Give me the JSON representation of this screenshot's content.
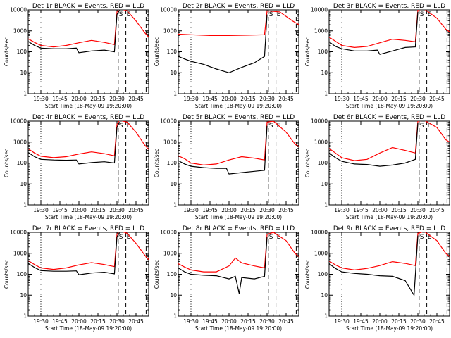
{
  "chart_data": [
    {
      "type": "line",
      "title": "Det 1r BLACK = Events, RED = LLD",
      "xlabel": "Start Time (18-May-09 19:20:00)",
      "ylabel": "Counts/sec",
      "yscale": "log",
      "ylim": [
        1,
        10000
      ],
      "x_ticks": [
        "19:30",
        "19:45",
        "20:00",
        "20:15",
        "20:30",
        "20:45"
      ],
      "y_ticks": [
        "1",
        "10",
        "100",
        "1000",
        "10000"
      ],
      "markers": [
        {
          "type": "dotted",
          "x": "19:30"
        },
        {
          "type": "dashed",
          "x": "20:31",
          "label": "S"
        },
        {
          "type": "dashed",
          "x": "20:53"
        },
        {
          "type": "dashed",
          "x": "20:37",
          "label": "E"
        }
      ],
      "series": [
        {
          "color": "#ff0000",
          "x": [
            "19:20",
            "19:25",
            "19:30",
            "19:40",
            "19:50",
            "20:00",
            "20:10",
            "20:20",
            "20:28",
            "20:30",
            "20:32",
            "20:38",
            "20:45",
            "20:52",
            "20:55"
          ],
          "y": [
            420,
            280,
            200,
            170,
            200,
            270,
            350,
            280,
            220,
            8000,
            12000,
            9000,
            3000,
            800,
            500
          ]
        },
        {
          "color": "#000000",
          "x": [
            "19:20",
            "19:25",
            "19:30",
            "19:40",
            "19:50",
            "19:58",
            "20:00",
            "20:10",
            "20:20",
            "20:28",
            "20:30",
            "20:32"
          ],
          "y": [
            310,
            200,
            150,
            140,
            140,
            150,
            90,
            110,
            120,
            100,
            6000,
            9500
          ]
        }
      ]
    },
    {
      "type": "line",
      "title": "Det 2r BLACK = Events, RED = LLD",
      "xlabel": "Start Time (18-May-09 19:20:00)",
      "ylabel": "Counts/sec",
      "yscale": "log",
      "ylim": [
        1,
        10000
      ],
      "x_ticks": [
        "19:30",
        "19:45",
        "20:00",
        "20:15",
        "20:30",
        "20:45"
      ],
      "y_ticks": [
        "1",
        "10",
        "100",
        "1000",
        "10000"
      ],
      "markers": [
        {
          "type": "dotted",
          "x": "19:30"
        },
        {
          "type": "dashed",
          "x": "20:31",
          "label": "S"
        },
        {
          "type": "dashed",
          "x": "20:53"
        },
        {
          "type": "dashed",
          "x": "20:37",
          "label": "E"
        }
      ],
      "series": [
        {
          "color": "#ff0000",
          "x": [
            "19:20",
            "19:30",
            "19:45",
            "20:00",
            "20:15",
            "20:28",
            "20:30",
            "20:40",
            "20:50",
            "20:55"
          ],
          "y": [
            700,
            650,
            600,
            600,
            620,
            650,
            9000,
            8000,
            3000,
            2000
          ]
        },
        {
          "color": "#000000",
          "x": [
            "19:20",
            "19:25",
            "19:30",
            "19:40",
            "19:50",
            "20:00",
            "20:10",
            "20:20",
            "20:28",
            "20:30"
          ],
          "y": [
            60,
            45,
            35,
            25,
            15,
            10,
            18,
            30,
            60,
            6000
          ]
        }
      ]
    },
    {
      "type": "line",
      "title": "Det 3r BLACK = Events, RED = LLD",
      "xlabel": "Start Time (18-May-09 19:20:00)",
      "ylabel": "Counts/sec",
      "yscale": "log",
      "ylim": [
        1,
        10000
      ],
      "x_ticks": [
        "19:30",
        "19:45",
        "20:00",
        "20:15",
        "20:30",
        "20:45"
      ],
      "y_ticks": [
        "1",
        "10",
        "100",
        "1000",
        "10000"
      ],
      "markers": [
        {
          "type": "dotted",
          "x": "19:30"
        },
        {
          "type": "dashed",
          "x": "20:31",
          "label": "S"
        },
        {
          "type": "dashed",
          "x": "20:53"
        },
        {
          "type": "dashed",
          "x": "20:37",
          "label": "E"
        }
      ],
      "series": [
        {
          "color": "#ff0000",
          "x": [
            "19:20",
            "19:25",
            "19:30",
            "19:40",
            "19:50",
            "20:00",
            "20:10",
            "20:20",
            "20:28",
            "20:30",
            "20:35",
            "20:45",
            "20:52",
            "20:55"
          ],
          "y": [
            500,
            320,
            200,
            160,
            180,
            270,
            400,
            350,
            300,
            10000,
            11000,
            4000,
            1200,
            900
          ]
        },
        {
          "color": "#000000",
          "x": [
            "19:20",
            "19:25",
            "19:30",
            "19:40",
            "19:50",
            "19:58",
            "20:00",
            "20:10",
            "20:20",
            "20:28",
            "20:30"
          ],
          "y": [
            300,
            180,
            140,
            110,
            110,
            120,
            75,
            110,
            160,
            170,
            8000
          ]
        }
      ]
    },
    {
      "type": "line",
      "title": "Det 4r BLACK = Events, RED = LLD",
      "xlabel": "Start Time (18-May-09 19:20:00)",
      "ylabel": "Counts/sec",
      "yscale": "log",
      "ylim": [
        1,
        10000
      ],
      "x_ticks": [
        "19:30",
        "19:45",
        "20:00",
        "20:15",
        "20:30",
        "20:45"
      ],
      "y_ticks": [
        "1",
        "10",
        "100",
        "1000",
        "10000"
      ],
      "markers": [
        {
          "type": "dotted",
          "x": "19:30"
        },
        {
          "type": "dashed",
          "x": "20:31",
          "label": "S"
        },
        {
          "type": "dashed",
          "x": "20:53"
        },
        {
          "type": "dashed",
          "x": "20:37",
          "label": "E"
        }
      ],
      "series": [
        {
          "color": "#ff0000",
          "x": [
            "19:20",
            "19:25",
            "19:30",
            "19:40",
            "19:50",
            "20:00",
            "20:10",
            "20:20",
            "20:28",
            "20:30",
            "20:32",
            "20:38",
            "20:45",
            "20:52",
            "20:55"
          ],
          "y": [
            480,
            300,
            210,
            180,
            200,
            270,
            340,
            280,
            220,
            7000,
            11000,
            9000,
            3000,
            700,
            450
          ]
        },
        {
          "color": "#000000",
          "x": [
            "19:20",
            "19:25",
            "19:30",
            "19:40",
            "19:50",
            "19:58",
            "20:00",
            "20:10",
            "20:20",
            "20:28",
            "20:30",
            "20:32"
          ],
          "y": [
            320,
            200,
            150,
            140,
            135,
            140,
            90,
            105,
            115,
            100,
            5000,
            9000
          ]
        }
      ]
    },
    {
      "type": "line",
      "title": "Det 5r BLACK = Events, RED = LLD",
      "xlabel": "Start Time (18-May-09 19:20:00)",
      "ylabel": "Counts/sec",
      "yscale": "log",
      "ylim": [
        1,
        10000
      ],
      "x_ticks": [
        "19:30",
        "19:45",
        "20:00",
        "20:15",
        "20:30",
        "20:45"
      ],
      "y_ticks": [
        "1",
        "10",
        "100",
        "1000",
        "10000"
      ],
      "markers": [
        {
          "type": "dotted",
          "x": "19:30"
        },
        {
          "type": "dashed",
          "x": "20:31",
          "label": "S"
        },
        {
          "type": "dashed",
          "x": "20:53"
        },
        {
          "type": "dashed",
          "x": "20:37",
          "label": "E"
        }
      ],
      "series": [
        {
          "color": "#ff0000",
          "x": [
            "19:20",
            "19:25",
            "19:30",
            "19:40",
            "19:50",
            "20:00",
            "20:10",
            "20:20",
            "20:28",
            "20:30",
            "20:35",
            "20:45",
            "20:52",
            "20:55"
          ],
          "y": [
            220,
            160,
            100,
            80,
            90,
            140,
            200,
            170,
            140,
            9000,
            10000,
            3000,
            800,
            600
          ]
        },
        {
          "color": "#000000",
          "x": [
            "19:20",
            "19:25",
            "19:30",
            "19:40",
            "19:50",
            "19:58",
            "20:00",
            "20:10",
            "20:20",
            "20:28",
            "20:30"
          ],
          "y": [
            130,
            90,
            70,
            60,
            55,
            55,
            30,
            35,
            40,
            45,
            6000
          ]
        }
      ]
    },
    {
      "type": "line",
      "title": "Det 6r BLACK = Events, RED = LLD",
      "xlabel": "Start Time (18-May-09 19:20:00)",
      "ylabel": "Counts/sec",
      "yscale": "log",
      "ylim": [
        1,
        10000
      ],
      "x_ticks": [
        "19:30",
        "19:45",
        "20:00",
        "20:15",
        "20:30",
        "20:45"
      ],
      "y_ticks": [
        "1",
        "10",
        "100",
        "1000",
        "10000"
      ],
      "markers": [
        {
          "type": "dotted",
          "x": "19:30"
        },
        {
          "type": "dashed",
          "x": "20:31",
          "label": "S"
        },
        {
          "type": "dashed",
          "x": "20:53"
        },
        {
          "type": "dashed",
          "x": "20:37",
          "label": "E"
        }
      ],
      "series": [
        {
          "color": "#ff0000",
          "x": [
            "19:20",
            "19:25",
            "19:30",
            "19:40",
            "19:50",
            "20:00",
            "20:10",
            "20:20",
            "20:28",
            "20:30",
            "20:35",
            "20:45",
            "20:52",
            "20:55"
          ],
          "y": [
            500,
            300,
            180,
            130,
            150,
            300,
            550,
            400,
            300,
            10000,
            11000,
            5000,
            1300,
            1000
          ]
        },
        {
          "color": "#000000",
          "x": [
            "19:20",
            "19:25",
            "19:30",
            "19:40",
            "19:50",
            "20:00",
            "20:10",
            "20:20",
            "20:28",
            "20:30"
          ],
          "y": [
            300,
            180,
            120,
            90,
            85,
            70,
            80,
            100,
            150,
            8000
          ]
        }
      ]
    },
    {
      "type": "line",
      "title": "Det 7r BLACK = Events, RED = LLD",
      "xlabel": "Start Time (18-May-09 19:20:00)",
      "ylabel": "Counts/sec",
      "yscale": "log",
      "ylim": [
        1,
        10000
      ],
      "x_ticks": [
        "19:30",
        "19:45",
        "20:00",
        "20:15",
        "20:30",
        "20:45"
      ],
      "y_ticks": [
        "1",
        "10",
        "100",
        "1000",
        "10000"
      ],
      "markers": [
        {
          "type": "dotted",
          "x": "19:30"
        },
        {
          "type": "dashed",
          "x": "20:31",
          "label": "S"
        },
        {
          "type": "dashed",
          "x": "20:53"
        },
        {
          "type": "dashed",
          "x": "20:37",
          "label": "E"
        }
      ],
      "series": [
        {
          "color": "#ff0000",
          "x": [
            "19:20",
            "19:25",
            "19:30",
            "19:40",
            "19:50",
            "20:00",
            "20:10",
            "20:20",
            "20:28",
            "20:30",
            "20:32",
            "20:38",
            "20:45",
            "20:52",
            "20:55"
          ],
          "y": [
            450,
            290,
            200,
            170,
            200,
            280,
            360,
            290,
            230,
            8000,
            12000,
            9000,
            3000,
            800,
            500
          ]
        },
        {
          "color": "#000000",
          "x": [
            "19:20",
            "19:25",
            "19:30",
            "19:40",
            "19:50",
            "19:58",
            "20:00",
            "20:10",
            "20:20",
            "20:28",
            "20:30",
            "20:32"
          ],
          "y": [
            330,
            210,
            150,
            140,
            140,
            145,
            95,
            115,
            125,
            105,
            6000,
            9500
          ]
        }
      ]
    },
    {
      "type": "line",
      "title": "Det 8r BLACK = Events, RED = LLD",
      "xlabel": "Start Time (18-May-09 19:20:00)",
      "ylabel": "Counts/sec",
      "yscale": "log",
      "ylim": [
        1,
        10000
      ],
      "x_ticks": [
        "19:30",
        "19:45",
        "20:00",
        "20:15",
        "20:30",
        "20:45"
      ],
      "y_ticks": [
        "1",
        "10",
        "100",
        "1000",
        "10000"
      ],
      "markers": [
        {
          "type": "dotted",
          "x": "19:30"
        },
        {
          "type": "dashed",
          "x": "20:31",
          "label": "S"
        },
        {
          "type": "dashed",
          "x": "20:53"
        },
        {
          "type": "dashed",
          "x": "20:37",
          "label": "E"
        }
      ],
      "series": [
        {
          "color": "#ff0000",
          "x": [
            "19:20",
            "19:25",
            "19:30",
            "19:40",
            "19:50",
            "20:00",
            "20:05",
            "20:10",
            "20:20",
            "20:28",
            "20:30",
            "20:35",
            "20:45",
            "20:52",
            "20:55"
          ],
          "y": [
            320,
            220,
            160,
            130,
            130,
            250,
            600,
            350,
            250,
            200,
            8000,
            10000,
            4000,
            1000,
            700
          ]
        },
        {
          "color": "#000000",
          "x": [
            "19:20",
            "19:25",
            "19:30",
            "19:40",
            "19:50",
            "20:00",
            "20:05",
            "20:08",
            "20:10",
            "20:20",
            "20:28",
            "20:30"
          ],
          "y": [
            200,
            130,
            100,
            90,
            85,
            60,
            80,
            12,
            70,
            60,
            80,
            6000
          ]
        }
      ]
    },
    {
      "type": "line",
      "title": "Det 9r BLACK = Events, RED = LLD",
      "xlabel": "Start Time (18-May-09 19:20:00)",
      "ylabel": "Counts/sec",
      "yscale": "log",
      "ylim": [
        1,
        10000
      ],
      "x_ticks": [
        "19:30",
        "19:45",
        "20:00",
        "20:15",
        "20:30",
        "20:45"
      ],
      "y_ticks": [
        "1",
        "10",
        "100",
        "1000",
        "10000"
      ],
      "markers": [
        {
          "type": "dotted",
          "x": "19:30"
        },
        {
          "type": "dashed",
          "x": "20:31",
          "label": "S"
        },
        {
          "type": "dashed",
          "x": "20:53"
        },
        {
          "type": "dashed",
          "x": "20:37",
          "label": "E"
        }
      ],
      "series": [
        {
          "color": "#ff0000",
          "x": [
            "19:20",
            "19:25",
            "19:30",
            "19:40",
            "19:50",
            "20:00",
            "20:10",
            "20:20",
            "20:28",
            "20:30",
            "20:35",
            "20:45",
            "20:52",
            "20:55"
          ],
          "y": [
            430,
            280,
            200,
            160,
            190,
            260,
            400,
            330,
            260,
            9000,
            11000,
            4000,
            1000,
            700
          ]
        },
        {
          "color": "#000000",
          "x": [
            "19:20",
            "19:25",
            "19:30",
            "19:40",
            "19:50",
            "20:00",
            "20:10",
            "20:20",
            "20:27",
            "20:30"
          ],
          "y": [
            320,
            190,
            130,
            110,
            100,
            85,
            80,
            50,
            10,
            7000
          ]
        }
      ]
    }
  ]
}
